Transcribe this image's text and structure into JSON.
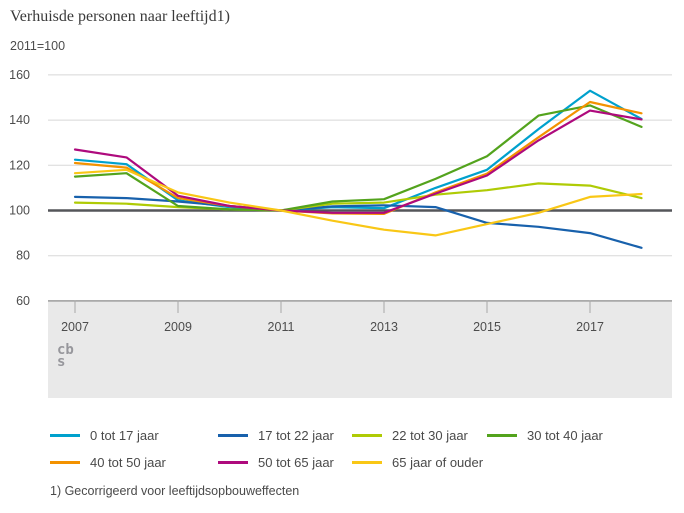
{
  "header": {
    "title": "Verhuisde personen naar leeftijd1)",
    "subtitle": "2011=100"
  },
  "footnote": "1) Gecorrigeerd voor leeftijdsopbouweffecten",
  "logo": {
    "name": "cbs-logo",
    "line1": "cb",
    "line2": "s"
  },
  "colors": {
    "gridline": "#d8d8d8",
    "baseline_100": "#55565a",
    "axis": "#8d8d8d",
    "axis_band": "#e9e9e9",
    "tick": "#a8a8a8",
    "text": "#4d4d4d"
  },
  "chart_data": {
    "type": "line",
    "title": "Verhuisde personen naar leeftijd1)",
    "subtitle": "2011=100",
    "xlabel": "",
    "ylabel": "",
    "x": [
      2007,
      2008,
      2009,
      2010,
      2011,
      2012,
      2013,
      2014,
      2015,
      2016,
      2017,
      2018
    ],
    "x_tick_labels": [
      "2007",
      "2009",
      "2011",
      "2013",
      "2015",
      "2017"
    ],
    "x_tick_years": [
      2007,
      2009,
      2011,
      2013,
      2015,
      2017
    ],
    "y_ticks": [
      60,
      80,
      100,
      120,
      140,
      160
    ],
    "ylim": [
      60,
      165
    ],
    "baseline": 100,
    "grid": true,
    "legend_position": "bottom",
    "series": [
      {
        "name": "0 tot 17 jaar",
        "color": "#00a1cd",
        "values": [
          122.5,
          120.5,
          104.5,
          101.5,
          100,
          101.5,
          101,
          110,
          118,
          136,
          153,
          140.5
        ]
      },
      {
        "name": "17 tot 22 jaar",
        "color": "#1861ac",
        "values": [
          106,
          105.5,
          104,
          102,
          100,
          101.8,
          102.3,
          101.5,
          94.5,
          92.8,
          90,
          83.5
        ]
      },
      {
        "name": "22 tot 30 jaar",
        "color": "#afcb05",
        "values": [
          103.5,
          103,
          101.5,
          100.5,
          100,
          103,
          103.5,
          107,
          109,
          112,
          111,
          105.5
        ]
      },
      {
        "name": "30 tot 40 jaar",
        "color": "#53a31d",
        "values": [
          115,
          116.5,
          102,
          100.5,
          100,
          104,
          105,
          114,
          124,
          142,
          146.5,
          137
        ]
      },
      {
        "name": "40 tot 50 jaar",
        "color": "#f39200",
        "values": [
          121,
          119,
          105.5,
          102,
          100,
          98.7,
          98.5,
          108,
          116.3,
          132.4,
          148,
          143
        ]
      },
      {
        "name": "50 tot 65 jaar",
        "color": "#ae0a7d",
        "values": [
          127,
          123.5,
          106.5,
          102,
          100,
          99,
          99,
          107.5,
          115.5,
          131,
          144.2,
          140.3
        ]
      },
      {
        "name": "65 jaar of ouder",
        "color": "#f9c716",
        "values": [
          116.5,
          118,
          108,
          103.5,
          100,
          95.5,
          91.5,
          89,
          94,
          99,
          106,
          107.3
        ]
      }
    ]
  }
}
